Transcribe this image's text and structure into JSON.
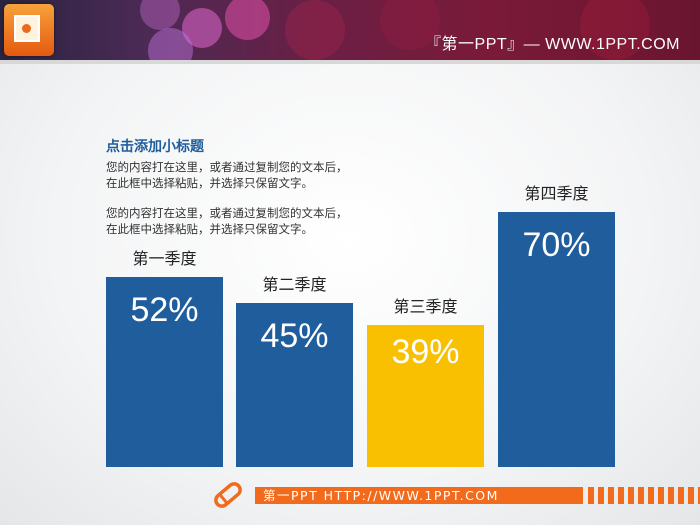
{
  "header": {
    "title": "『第一PPT』— WWW.1PPT.COM",
    "logo_icon": "powerpoint-icon"
  },
  "content": {
    "subtitle": "点击添加小标题",
    "paragraphs": [
      "您的内容打在这里，或者通过复制您的文本后，在此框中选择粘贴，并选择只保留文字。",
      "您的内容打在这里，或者通过复制您的文本后，在此框中选择粘贴，并选择只保留文字。"
    ]
  },
  "chart_data": {
    "type": "bar",
    "categories": [
      "第一季度",
      "第二季度",
      "第三季度",
      "第四季度"
    ],
    "values": [
      52,
      45,
      39,
      70
    ],
    "value_labels": [
      "52%",
      "45%",
      "39%",
      "70%"
    ],
    "colors": [
      "#1f5d9c",
      "#1f5d9c",
      "#f8c000",
      "#1f5d9c"
    ]
  },
  "footer": {
    "text": "第一PPT HTTP://WWW.1PPT.COM",
    "icon": "pencil-icon",
    "accent": "#f26b1d"
  }
}
